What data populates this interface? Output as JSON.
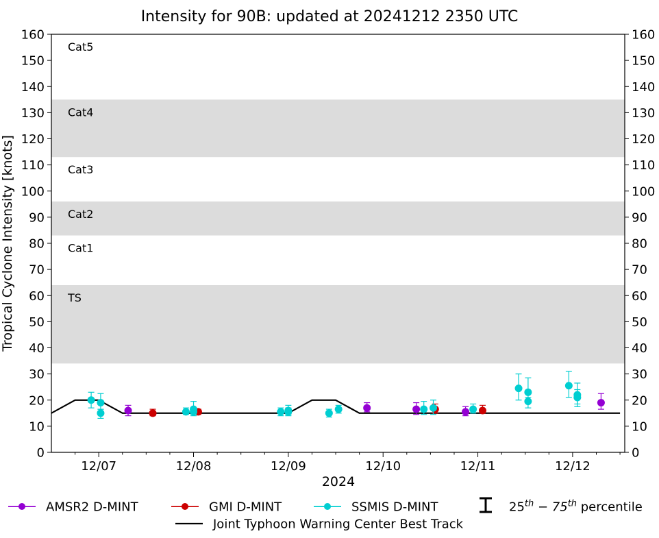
{
  "chart_data": {
    "type": "scatter",
    "title": "Intensity for 90B: updated at 20241212 2350 UTC",
    "ylabel": "Tropical Cyclone Intensity [knots]",
    "xlabel": "2024",
    "ylim": [
      0,
      160
    ],
    "yticks": [
      0,
      10,
      20,
      30,
      40,
      50,
      60,
      70,
      80,
      90,
      100,
      110,
      120,
      130,
      140,
      150,
      160
    ],
    "xlim": [
      -0.5,
      5.55
    ],
    "x_unit_note": "",
    "xticks": [
      {
        "pos": 0,
        "label": "12/07"
      },
      {
        "pos": 1,
        "label": "12/08"
      },
      {
        "pos": 2,
        "label": "12/09"
      },
      {
        "pos": 3,
        "label": "12/10"
      },
      {
        "pos": 4,
        "label": "12/11"
      },
      {
        "pos": 5,
        "label": "12/12"
      }
    ],
    "category_bands": [
      {
        "label": "TS",
        "from": 34,
        "to": 64,
        "shaded": true
      },
      {
        "label": "Cat1",
        "from": 64,
        "to": 83,
        "shaded": false
      },
      {
        "label": "Cat2",
        "from": 83,
        "to": 96,
        "shaded": true
      },
      {
        "label": "Cat3",
        "from": 96,
        "to": 113,
        "shaded": false
      },
      {
        "label": "Cat4",
        "from": 113,
        "to": 135,
        "shaded": true
      },
      {
        "label": "Cat5",
        "from": 135,
        "to": 160,
        "shaded": false
      }
    ],
    "band_color": "#dcdcdc",
    "series": [
      {
        "name": "AMSR2 D-MINT",
        "color": "#9400d3",
        "points": [
          {
            "x": 0.31,
            "y": 16,
            "lo": 14,
            "hi": 18
          },
          {
            "x": 2.83,
            "y": 17,
            "lo": 15.5,
            "hi": 19
          },
          {
            "x": 3.35,
            "y": 16.5,
            "lo": 14.5,
            "hi": 19
          },
          {
            "x": 3.87,
            "y": 15.5,
            "lo": 14,
            "hi": 17.5
          },
          {
            "x": 5.3,
            "y": 19,
            "lo": 16.5,
            "hi": 22.5
          }
        ]
      },
      {
        "name": "GMI D-MINT",
        "color": "#cc0000",
        "points": [
          {
            "x": 0.57,
            "y": 15,
            "lo": 14,
            "hi": 16.5
          },
          {
            "x": 1.05,
            "y": 15.5,
            "lo": 14.5,
            "hi": 16.5
          },
          {
            "x": 3.55,
            "y": 16.5,
            "lo": 15,
            "hi": 18.5
          },
          {
            "x": 4.05,
            "y": 16,
            "lo": 15,
            "hi": 18
          }
        ]
      },
      {
        "name": "SSMIS D-MINT",
        "color": "#00ced1",
        "points": [
          {
            "x": -0.08,
            "y": 20,
            "lo": 17,
            "hi": 23
          },
          {
            "x": 0.02,
            "y": 19,
            "lo": 16.5,
            "hi": 22.5
          },
          {
            "x": 0.02,
            "y": 15,
            "lo": 13,
            "hi": 16.5
          },
          {
            "x": 0.92,
            "y": 15.5,
            "lo": 14.5,
            "hi": 17
          },
          {
            "x": 1.0,
            "y": 16.5,
            "lo": 14.5,
            "hi": 19.5
          },
          {
            "x": 1.0,
            "y": 15.5,
            "lo": 14,
            "hi": 16.5
          },
          {
            "x": 1.92,
            "y": 15.5,
            "lo": 14,
            "hi": 17
          },
          {
            "x": 2.0,
            "y": 16,
            "lo": 14.5,
            "hi": 18
          },
          {
            "x": 2.0,
            "y": 15.5,
            "lo": 14,
            "hi": 17
          },
          {
            "x": 2.43,
            "y": 15,
            "lo": 13.5,
            "hi": 16.5
          },
          {
            "x": 2.53,
            "y": 16.5,
            "lo": 15,
            "hi": 18
          },
          {
            "x": 3.43,
            "y": 16.5,
            "lo": 14.5,
            "hi": 19.5
          },
          {
            "x": 3.53,
            "y": 17,
            "lo": 14.5,
            "hi": 20
          },
          {
            "x": 3.95,
            "y": 16.5,
            "lo": 15,
            "hi": 18.5
          },
          {
            "x": 4.43,
            "y": 24.5,
            "lo": 20,
            "hi": 30
          },
          {
            "x": 4.53,
            "y": 23,
            "lo": 19,
            "hi": 28.5
          },
          {
            "x": 4.53,
            "y": 19.5,
            "lo": 17,
            "hi": 21
          },
          {
            "x": 4.96,
            "y": 25.5,
            "lo": 21,
            "hi": 31
          },
          {
            "x": 5.05,
            "y": 22,
            "lo": 18.5,
            "hi": 26.5
          },
          {
            "x": 5.05,
            "y": 21,
            "lo": 17.5,
            "hi": 24
          }
        ]
      }
    ],
    "best_track": {
      "name": "Joint Typhoon Warning Center Best Track",
      "color": "#000000",
      "x": [
        -0.5,
        -0.25,
        0.0,
        0.25,
        1.0,
        1.5,
        1.75,
        2.0,
        2.25,
        2.5,
        2.75,
        3.0,
        4.0,
        5.0,
        5.5
      ],
      "y": [
        15,
        20,
        20,
        15,
        15,
        15,
        15,
        15,
        20,
        20,
        15,
        15,
        15,
        15,
        15
      ]
    },
    "legend": {
      "placement": "bottom",
      "percentile_prefix": "25",
      "percentile_mid": " − 75",
      "percentile_suffix": " percentile",
      "sup": "th"
    }
  }
}
